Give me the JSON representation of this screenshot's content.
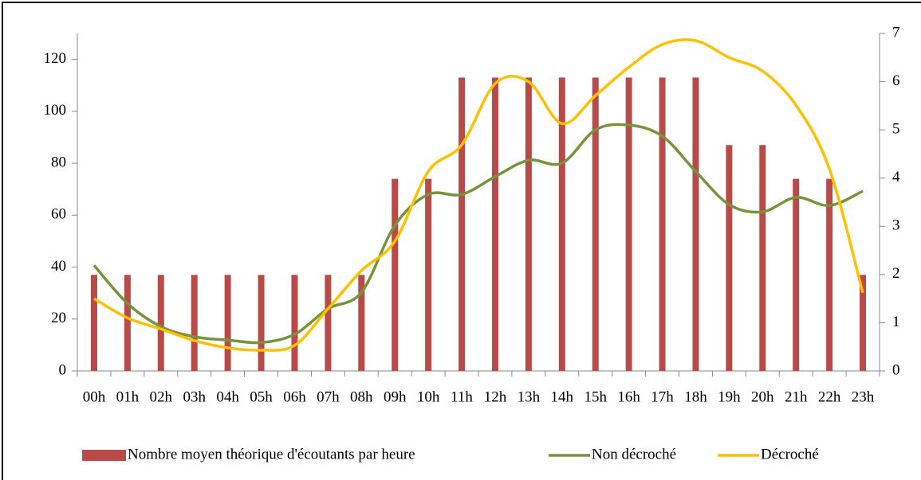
{
  "chart_data": {
    "type": "bar",
    "categories": [
      "00h",
      "01h",
      "02h",
      "03h",
      "04h",
      "05h",
      "06h",
      "07h",
      "08h",
      "09h",
      "10h",
      "11h",
      "12h",
      "13h",
      "14h",
      "15h",
      "16h",
      "17h",
      "18h",
      "19h",
      "20h",
      "21h",
      "22h",
      "23h"
    ],
    "series": [
      {
        "name": "Nombre moyen théorique d'écoutants par heure",
        "type": "bar",
        "color": "#b84a47",
        "values": [
          37,
          37,
          37,
          37,
          37,
          37,
          37,
          37,
          37,
          74,
          74,
          113,
          113,
          113,
          113,
          113,
          113,
          113,
          113,
          87,
          87,
          74,
          74,
          37
        ]
      },
      {
        "name": "Non décroché",
        "type": "line",
        "axis": "y2",
        "color": "#77933c",
        "values": [
          2.19,
          1.4,
          0.92,
          0.71,
          0.64,
          0.59,
          0.76,
          1.29,
          1.63,
          3.02,
          3.66,
          3.66,
          4.03,
          4.37,
          4.31,
          5.0,
          5.1,
          4.87,
          4.14,
          3.45,
          3.3,
          3.6,
          3.43,
          3.73
        ]
      },
      {
        "name": "Décroché",
        "type": "line",
        "axis": "y2",
        "color": "#ffc000",
        "values": [
          1.5,
          1.1,
          0.87,
          0.63,
          0.48,
          0.43,
          0.53,
          1.29,
          2.08,
          2.69,
          4.14,
          4.69,
          5.96,
          6.0,
          5.13,
          5.71,
          6.3,
          6.77,
          6.85,
          6.5,
          6.22,
          5.51,
          4.19,
          1.62
        ]
      }
    ],
    "ylim": [
      0,
      130
    ],
    "yticks": [
      0,
      20,
      40,
      60,
      80,
      100,
      120
    ],
    "y2lim": [
      0,
      7
    ],
    "y2ticks": [
      0,
      1,
      2,
      3,
      4,
      5,
      6,
      7
    ],
    "legend": "bottom"
  }
}
